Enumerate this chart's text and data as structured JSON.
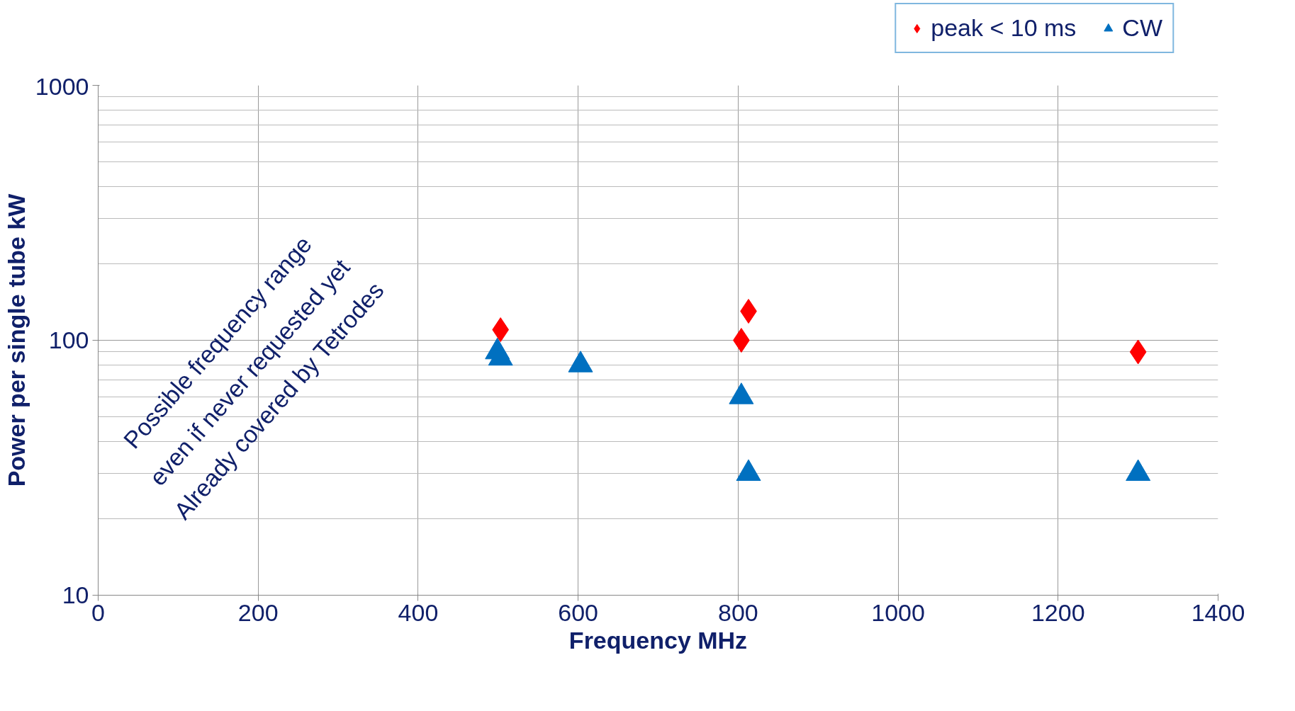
{
  "chart_data": {
    "type": "scatter",
    "xlabel": "Frequency MHz",
    "ylabel": "Power per single tube kW",
    "xlim": [
      0,
      1400
    ],
    "xticks": [
      0,
      200,
      400,
      600,
      800,
      1000,
      1200,
      1400
    ],
    "ylim": [
      10,
      1000
    ],
    "yticks": [
      10,
      100,
      1000
    ],
    "log": true,
    "grid": true,
    "legend": "top right",
    "series": [
      {
        "name": "peak < 10 ms",
        "color": "#ff0000",
        "marker": "diamond",
        "x": [
          503,
          813,
          804,
          1300
        ],
        "values": [
          110,
          130,
          100,
          90
        ]
      },
      {
        "name": "CW",
        "color": "#0070c0",
        "marker": "triangle",
        "x": [
          499,
          503,
          603,
          804,
          813,
          1300
        ],
        "values": [
          90,
          85,
          80,
          60,
          30,
          30
        ]
      }
    ],
    "annotations": [
      "Possible frequency range",
      "even if never requested yet",
      "Already covered by Tetrodes"
    ]
  }
}
